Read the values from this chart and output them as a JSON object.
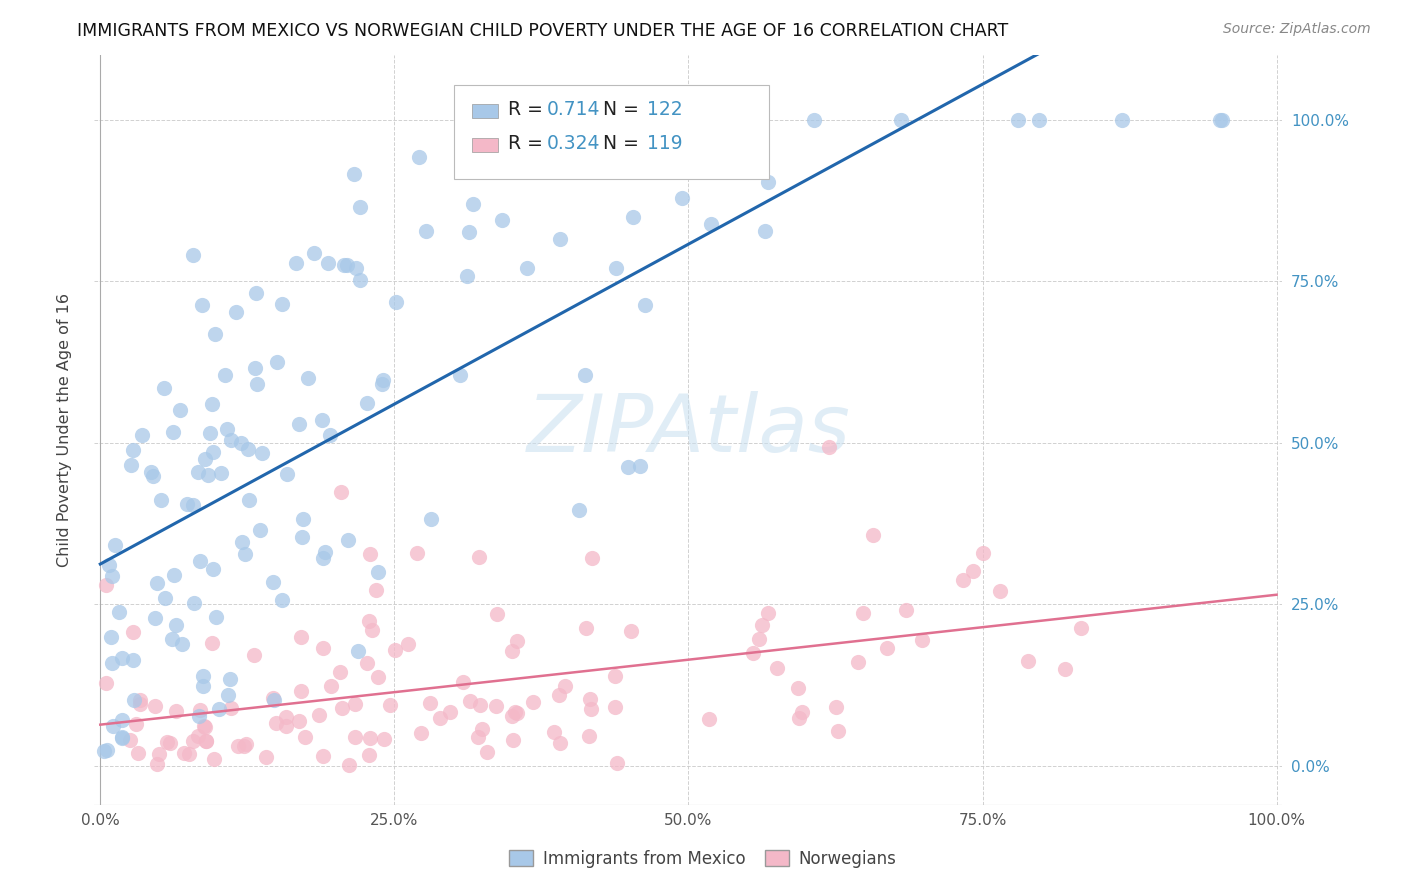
{
  "title": "IMMIGRANTS FROM MEXICO VS NORWEGIAN CHILD POVERTY UNDER THE AGE OF 16 CORRELATION CHART",
  "source": "Source: ZipAtlas.com",
  "ylabel": "Child Poverty Under the Age of 16",
  "watermark": "ZIPAtlas",
  "legend_blue_r": "0.714",
  "legend_blue_n": "122",
  "legend_pink_r": "0.324",
  "legend_pink_n": "119",
  "legend_label_blue": "Immigrants from Mexico",
  "legend_label_pink": "Norwegians",
  "blue_scatter_color": "#a8c8e8",
  "pink_scatter_color": "#f4b8c8",
  "blue_line_color": "#2166ac",
  "pink_line_color": "#e07090",
  "r_n_color": "#4393c3",
  "title_fontsize": 12.5,
  "source_fontsize": 10,
  "blue_N": 122,
  "pink_N": 119
}
